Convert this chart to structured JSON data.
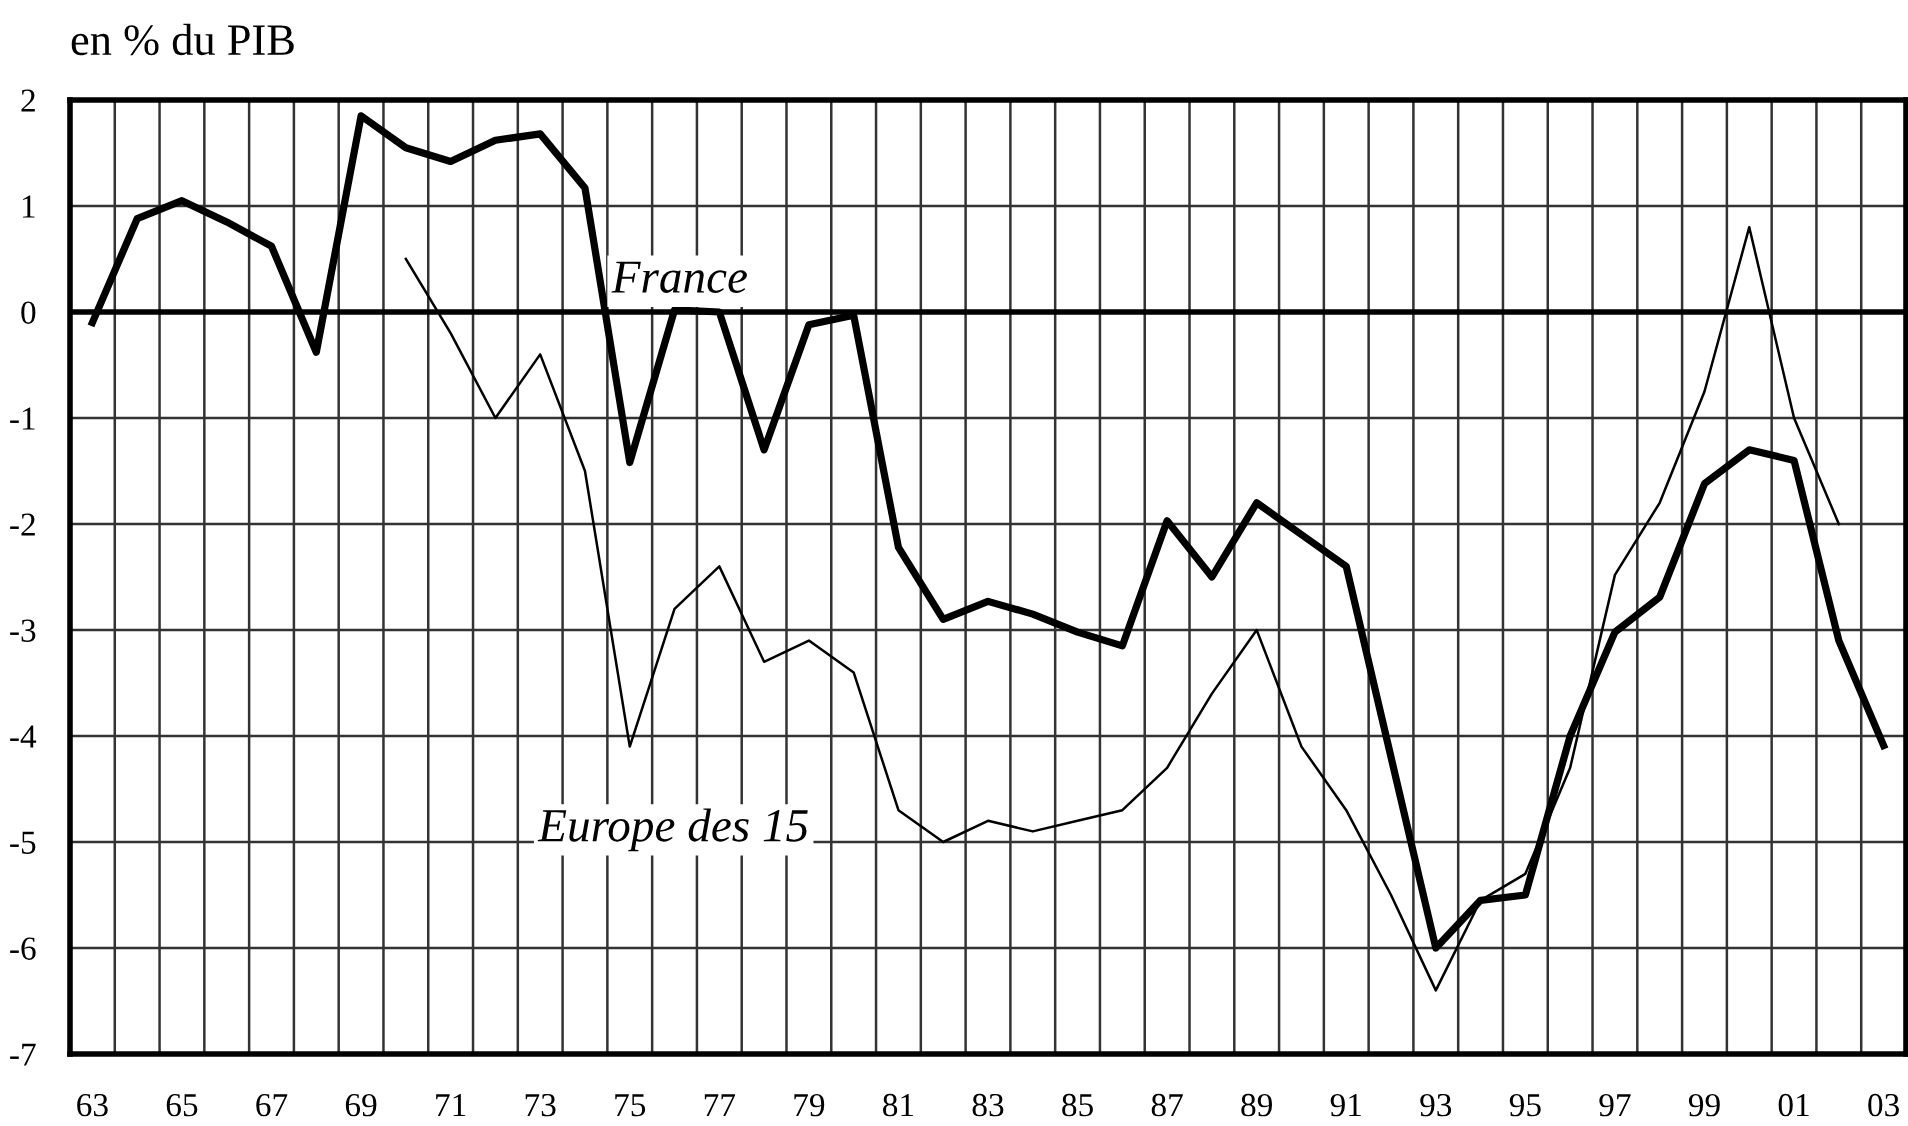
{
  "chart_data": {
    "type": "line",
    "title": "en % du PIB",
    "x": [
      1963,
      1964,
      1965,
      1966,
      1967,
      1968,
      1969,
      1970,
      1971,
      1972,
      1973,
      1974,
      1975,
      1976,
      1977,
      1978,
      1979,
      1980,
      1981,
      1982,
      1983,
      1984,
      1985,
      1986,
      1987,
      1988,
      1989,
      1990,
      1991,
      1992,
      1993,
      1994,
      1995,
      1996,
      1997,
      1998,
      1999,
      2000,
      2001,
      2002,
      2003
    ],
    "series": [
      {
        "name": "France",
        "color": "#000000",
        "values": [
          -0.1,
          0.88,
          1.05,
          0.85,
          0.62,
          -0.38,
          1.85,
          1.55,
          1.42,
          1.62,
          1.68,
          1.17,
          -1.42,
          0.02,
          0.0,
          -1.3,
          -0.12,
          -0.03,
          -2.22,
          -2.9,
          -2.73,
          -2.85,
          -3.02,
          -3.15,
          -1.97,
          -2.5,
          -1.8,
          -2.1,
          -2.4,
          -4.2,
          -6.0,
          -5.55,
          -5.5,
          -4.0,
          -3.02,
          -2.69,
          -1.62,
          -1.3,
          -1.4,
          -3.1,
          -4.09
        ]
      },
      {
        "name": "Europe des 15",
        "color": "#000000",
        "values": [
          null,
          null,
          null,
          null,
          null,
          null,
          null,
          0.5,
          -0.2,
          -1.0,
          -0.4,
          -1.5,
          -4.1,
          -2.8,
          -2.4,
          -3.3,
          -3.1,
          -3.4,
          -4.7,
          -5.0,
          -4.8,
          -4.9,
          -4.8,
          -4.7,
          -4.3,
          -3.6,
          -3.0,
          -4.1,
          -4.7,
          -5.5,
          -6.4,
          -5.55,
          -5.3,
          -4.3,
          -2.48,
          -1.8,
          -0.75,
          0.8,
          -1.0,
          -2.0,
          null
        ]
      }
    ],
    "xlim": [
      1962.5,
      2003.5
    ],
    "xticks": [
      {
        "value": 1962.5,
        "label": null
      },
      {
        "value": 1963,
        "label": "63"
      },
      {
        "value": 1963.5,
        "label": null
      },
      {
        "value": 1964.5,
        "label": null
      },
      {
        "value": 1965,
        "label": "65"
      },
      {
        "value": 1965.5,
        "label": null
      },
      {
        "value": 1966.5,
        "label": null
      },
      {
        "value": 1967,
        "label": "67"
      },
      {
        "value": 1967.5,
        "label": null
      },
      {
        "value": 1968.5,
        "label": null
      },
      {
        "value": 1969,
        "label": "69"
      },
      {
        "value": 1969.5,
        "label": null
      },
      {
        "value": 1970.5,
        "label": null
      },
      {
        "value": 1971,
        "label": "71"
      },
      {
        "value": 1971.5,
        "label": null
      },
      {
        "value": 1972.5,
        "label": null
      },
      {
        "value": 1973,
        "label": "73"
      },
      {
        "value": 1973.5,
        "label": null
      },
      {
        "value": 1974.5,
        "label": null
      },
      {
        "value": 1975,
        "label": "75"
      },
      {
        "value": 1975.5,
        "label": null
      },
      {
        "value": 1976.5,
        "label": null
      },
      {
        "value": 1977,
        "label": "77"
      },
      {
        "value": 1977.5,
        "label": null
      },
      {
        "value": 1978.5,
        "label": null
      },
      {
        "value": 1979,
        "label": "79"
      },
      {
        "value": 1979.5,
        "label": null
      },
      {
        "value": 1980.5,
        "label": null
      },
      {
        "value": 1981,
        "label": "81"
      },
      {
        "value": 1981.5,
        "label": null
      },
      {
        "value": 1982.5,
        "label": null
      },
      {
        "value": 1983,
        "label": "83"
      },
      {
        "value": 1983.5,
        "label": null
      },
      {
        "value": 1984.5,
        "label": null
      },
      {
        "value": 1985,
        "label": "85"
      },
      {
        "value": 1985.5,
        "label": null
      },
      {
        "value": 1986.5,
        "label": null
      },
      {
        "value": 1987,
        "label": "87"
      },
      {
        "value": 1987.5,
        "label": null
      },
      {
        "value": 1988.5,
        "label": null
      },
      {
        "value": 1989,
        "label": "89"
      },
      {
        "value": 1989.5,
        "label": null
      },
      {
        "value": 1990.5,
        "label": null
      },
      {
        "value": 1991,
        "label": "91"
      },
      {
        "value": 1991.5,
        "label": null
      },
      {
        "value": 1992.5,
        "label": null
      },
      {
        "value": 1993,
        "label": "93"
      },
      {
        "value": 1993.5,
        "label": null
      },
      {
        "value": 1994.5,
        "label": null
      },
      {
        "value": 1995,
        "label": "95"
      },
      {
        "value": 1995.5,
        "label": null
      },
      {
        "value": 1996.5,
        "label": null
      },
      {
        "value": 1997,
        "label": "97"
      },
      {
        "value": 1997.5,
        "label": null
      },
      {
        "value": 1998.5,
        "label": null
      },
      {
        "value": 1999,
        "label": "99"
      },
      {
        "value": 1999.5,
        "label": null
      },
      {
        "value": 2000.5,
        "label": null
      },
      {
        "value": 2001,
        "label": "01"
      },
      {
        "value": 2001.5,
        "label": null
      },
      {
        "value": 2002.5,
        "label": null
      },
      {
        "value": 2003,
        "label": "03"
      },
      {
        "value": 2003.5,
        "label": null
      }
    ],
    "ylim": [
      -7,
      2
    ],
    "yticks": [
      -7,
      -6,
      -5,
      -4,
      -3,
      -2,
      -1,
      0,
      1,
      2
    ],
    "grid": true,
    "ref_lines": [
      {
        "axis": "y",
        "value": 0,
        "label": null,
        "color": "#000000"
      }
    ],
    "legend": false,
    "marker": "none",
    "line_style": "solid"
  }
}
